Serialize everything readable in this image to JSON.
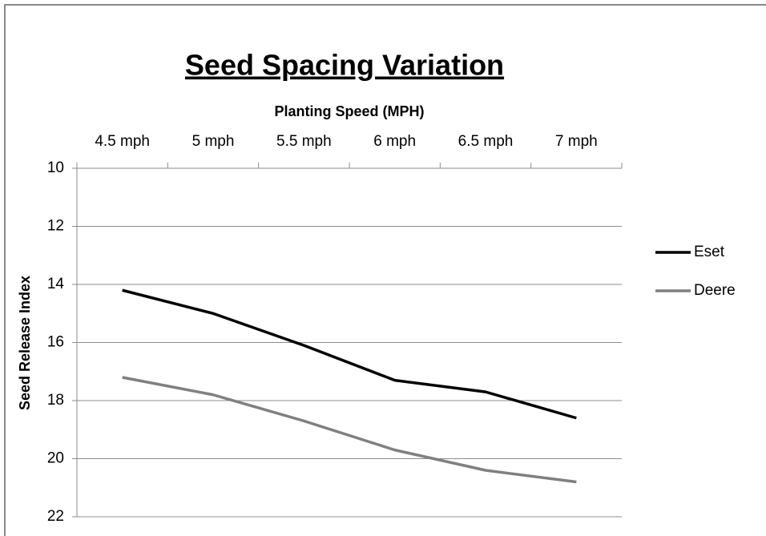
{
  "chart_data": {
    "type": "line",
    "title": "Seed Spacing Variation",
    "x_label": "Planting Speed (MPH)",
    "y_label": "Seed Release Index",
    "categories": [
      "4.5 mph",
      "5 mph",
      "5.5 mph",
      "6 mph",
      "6.5 mph",
      "7 mph"
    ],
    "series": [
      {
        "name": "Eset",
        "color": "#000000",
        "values": [
          14.2,
          15.0,
          16.1,
          17.3,
          17.7,
          18.6
        ]
      },
      {
        "name": "Deere",
        "color": "#808080",
        "values": [
          17.2,
          17.8,
          18.7,
          19.7,
          20.4,
          20.8
        ]
      }
    ],
    "ylim": [
      10,
      22
    ],
    "yticks": [
      10,
      12,
      14,
      16,
      18,
      20,
      22
    ],
    "y_inverted": true,
    "x_axis_position": "top",
    "grid": true,
    "legend": "right"
  }
}
